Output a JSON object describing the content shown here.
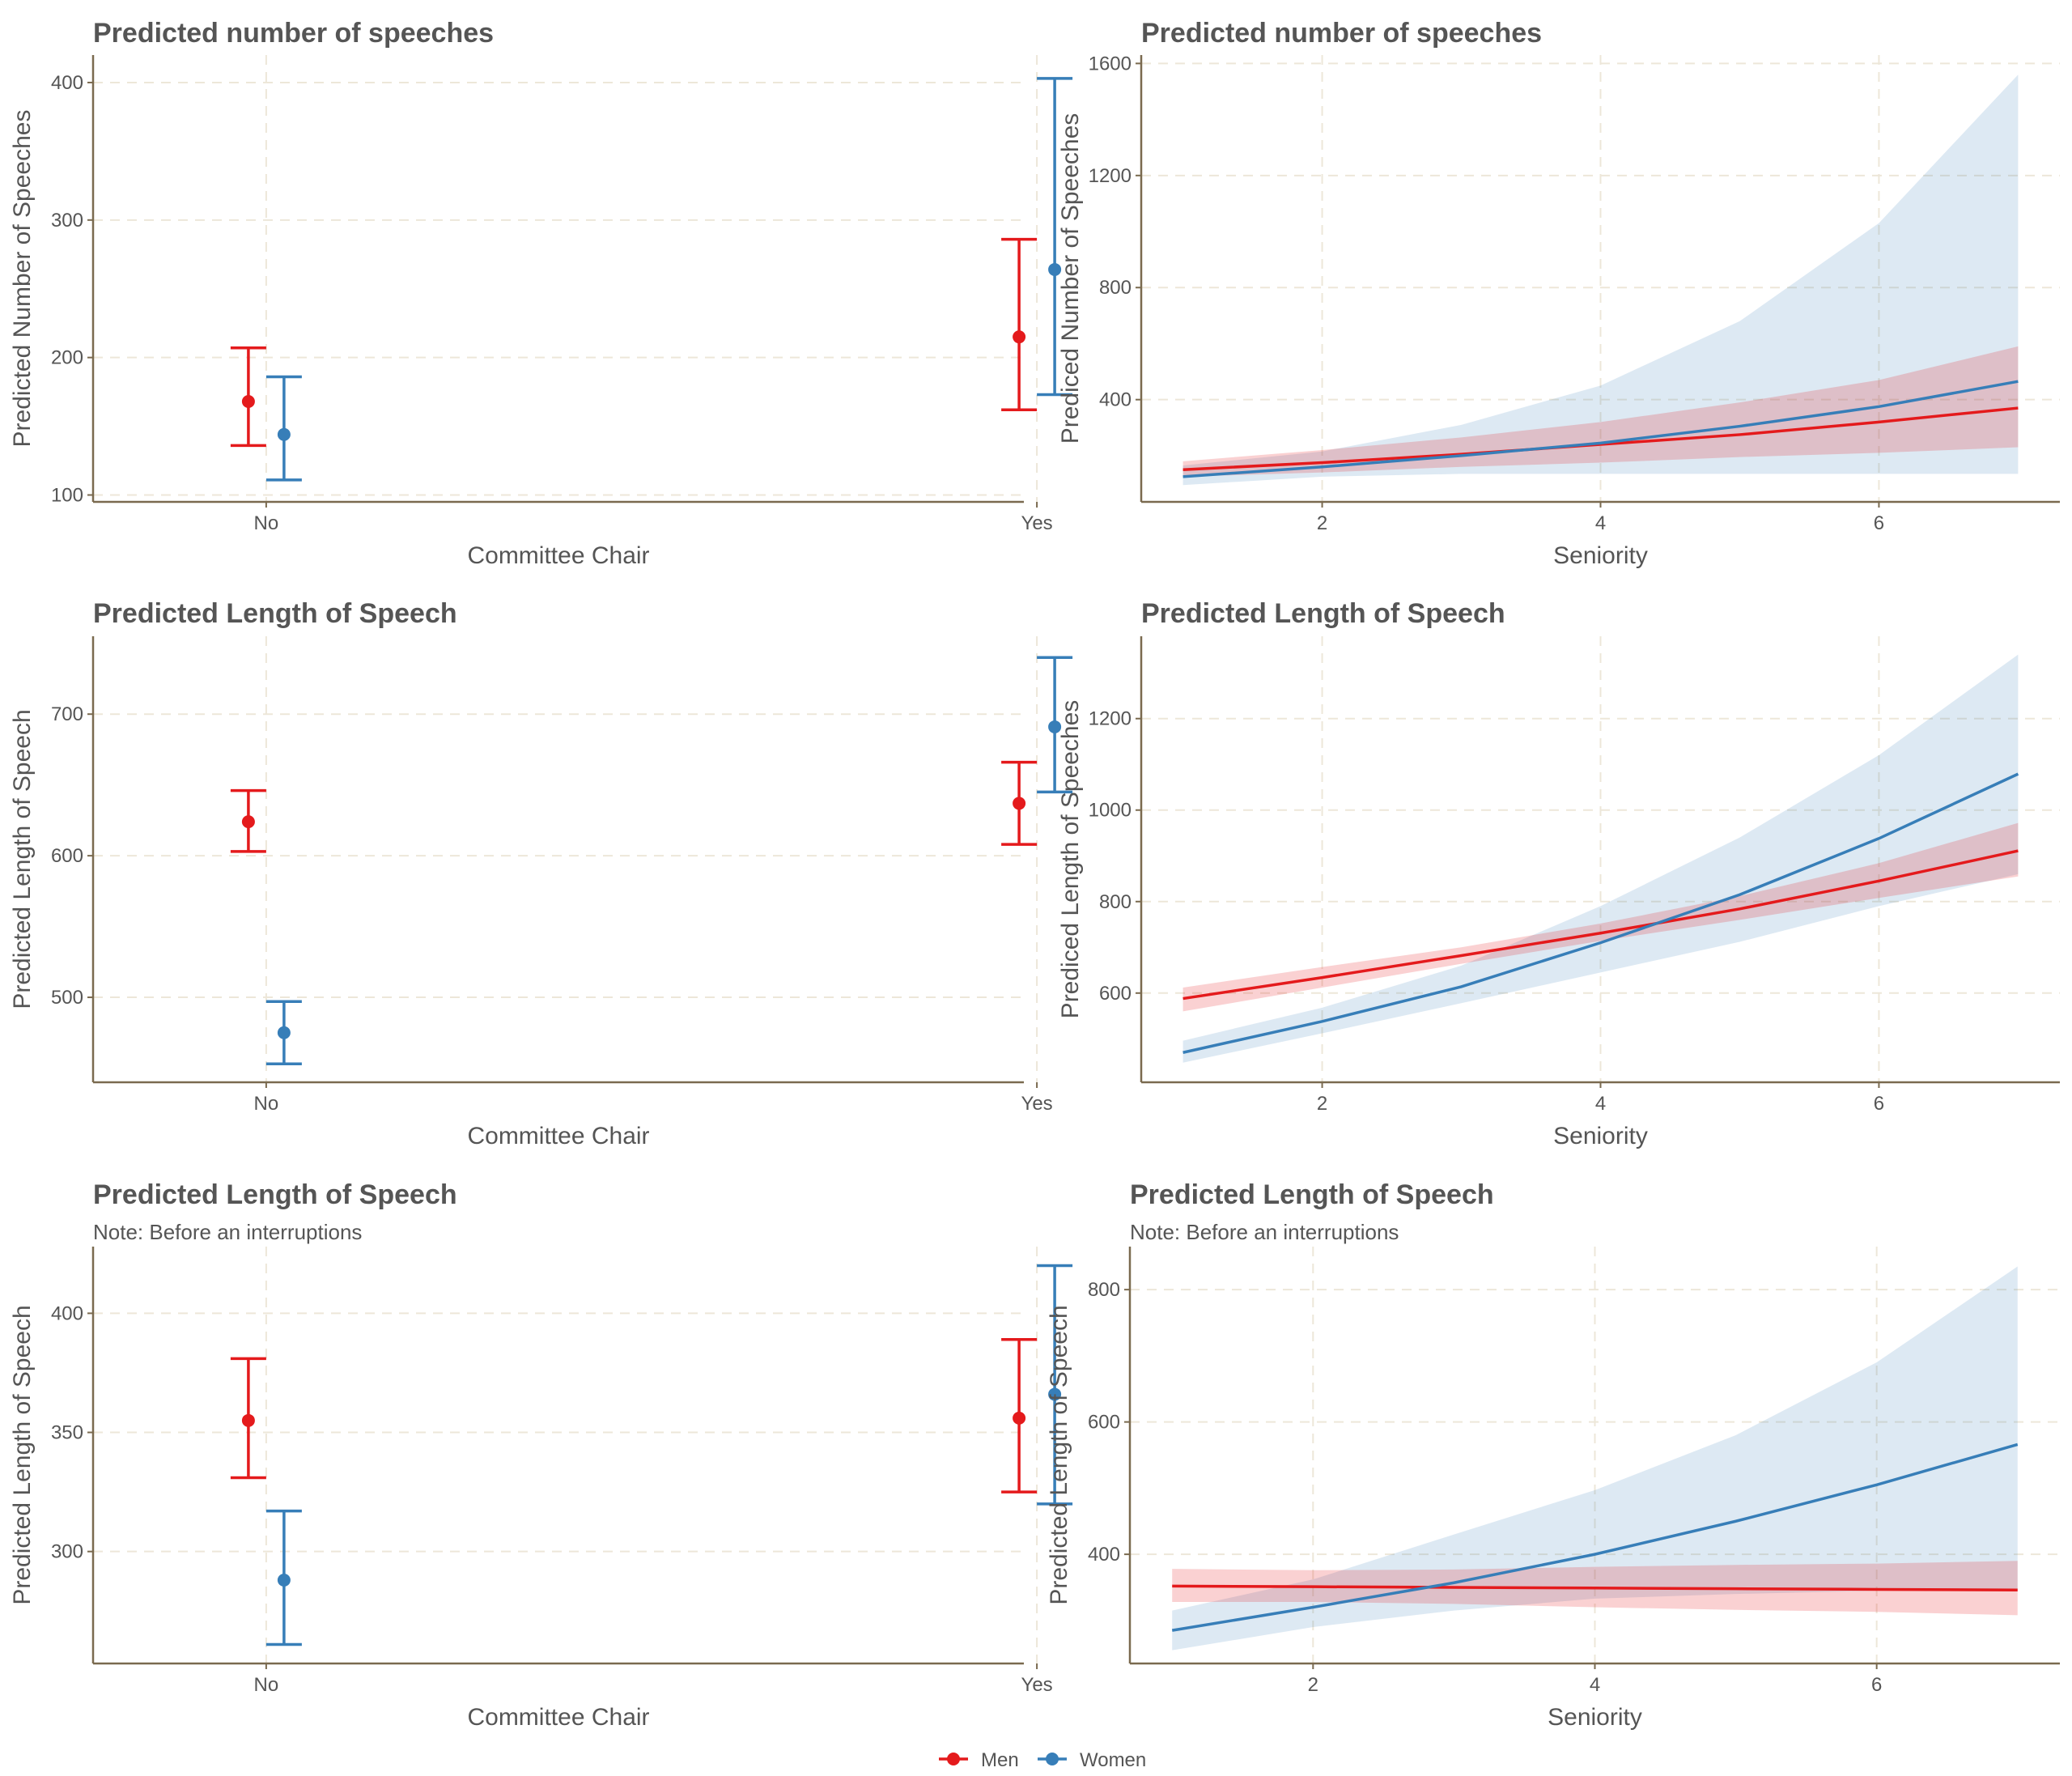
{
  "colors": {
    "men": "#E41A1C",
    "women": "#377EB8",
    "grid": "#EDE7D9",
    "axis": "#7A6A4F",
    "text": "#555555"
  },
  "legend": {
    "items": [
      {
        "label": "Men",
        "color": "#E41A1C"
      },
      {
        "label": "Women",
        "color": "#377EB8"
      }
    ]
  },
  "chart_data": [
    {
      "type": "errorbar",
      "title": "Predicted number of speeches",
      "subtitle": "",
      "xlabel": "Committee Chair",
      "ylabel": "Predicted Number of Speeches",
      "categories": [
        "No",
        "Yes"
      ],
      "ylim": [
        95,
        420
      ],
      "yticks": [
        100,
        200,
        300,
        400
      ],
      "series": [
        {
          "name": "Men",
          "color": "#E41A1C",
          "estimates": [
            168,
            215
          ],
          "lower": [
            136,
            162
          ],
          "upper": [
            207,
            286
          ]
        },
        {
          "name": "Women",
          "color": "#377EB8",
          "estimates": [
            144,
            264
          ],
          "lower": [
            111,
            173
          ],
          "upper": [
            186,
            403
          ]
        }
      ]
    },
    {
      "type": "line",
      "title": "Predicted number of speeches",
      "subtitle": "",
      "xlabel": "Seniority",
      "ylabel": "Prediced Number of Speeches",
      "xlim": [
        0.7,
        7.3
      ],
      "xticks": [
        2,
        4,
        6
      ],
      "ylim": [
        35,
        1630
      ],
      "yticks": [
        400,
        800,
        1200,
        1600
      ],
      "x": [
        1,
        2,
        3,
        4,
        5,
        6,
        7
      ],
      "series": [
        {
          "name": "Men",
          "color": "#E41A1C",
          "values": [
            150,
            175,
            205,
            240,
            275,
            320,
            370
          ],
          "lower": [
            125,
            140,
            160,
            175,
            195,
            210,
            230
          ],
          "upper": [
            180,
            220,
            265,
            320,
            390,
            470,
            590
          ]
        },
        {
          "name": "Women",
          "color": "#377EB8",
          "values": [
            125,
            160,
            200,
            245,
            305,
            375,
            465
          ],
          "lower": [
            95,
            125,
            135,
            135,
            135,
            135,
            135
          ],
          "upper": [
            165,
            215,
            310,
            450,
            680,
            1030,
            1560
          ]
        }
      ]
    },
    {
      "type": "errorbar",
      "title": "Predicted Length of Speech",
      "subtitle": "",
      "xlabel": "Committee Chair",
      "ylabel": "Predicted Length of Speech",
      "categories": [
        "No",
        "Yes"
      ],
      "ylim": [
        440,
        755
      ],
      "yticks": [
        500,
        600,
        700
      ],
      "series": [
        {
          "name": "Men",
          "color": "#E41A1C",
          "estimates": [
            624,
            637
          ],
          "lower": [
            603,
            608
          ],
          "upper": [
            646,
            666
          ]
        },
        {
          "name": "Women",
          "color": "#377EB8",
          "estimates": [
            475,
            691
          ],
          "lower": [
            453,
            645
          ],
          "upper": [
            497,
            740
          ]
        }
      ]
    },
    {
      "type": "line",
      "title": "Predicted Length of Speech",
      "subtitle": "",
      "xlabel": "Seniority",
      "ylabel": "Prediced Length of Speeches",
      "xlim": [
        0.7,
        7.3
      ],
      "xticks": [
        2,
        4,
        6
      ],
      "ylim": [
        405,
        1380
      ],
      "yticks": [
        600,
        800,
        1000,
        1200
      ],
      "x": [
        1,
        2,
        3,
        4,
        5,
        6,
        7
      ],
      "series": [
        {
          "name": "Men",
          "color": "#E41A1C",
          "values": [
            588,
            634,
            682,
            731,
            784,
            845,
            911
          ],
          "lower": [
            560,
            612,
            664,
            714,
            760,
            808,
            855
          ],
          "upper": [
            612,
            657,
            700,
            752,
            812,
            884,
            972
          ]
        },
        {
          "name": "Women",
          "color": "#377EB8",
          "values": [
            470,
            538,
            614,
            710,
            815,
            938,
            1079
          ],
          "lower": [
            448,
            512,
            578,
            645,
            712,
            790,
            860
          ],
          "upper": [
            496,
            568,
            660,
            790,
            940,
            1120,
            1340
          ]
        }
      ]
    },
    {
      "type": "errorbar",
      "title": "Predicted Length of Speech",
      "subtitle": "Note: Before an interruptions",
      "xlabel": "Committee Chair",
      "ylabel": "Predicted Length of Speech",
      "categories": [
        "No",
        "Yes"
      ],
      "ylim": [
        253,
        428
      ],
      "yticks": [
        300,
        350,
        400
      ],
      "series": [
        {
          "name": "Men",
          "color": "#E41A1C",
          "estimates": [
            355,
            356
          ],
          "lower": [
            331,
            325
          ],
          "upper": [
            381,
            389
          ]
        },
        {
          "name": "Women",
          "color": "#377EB8",
          "estimates": [
            288,
            366
          ],
          "lower": [
            261,
            320
          ],
          "upper": [
            317,
            420
          ]
        }
      ]
    },
    {
      "type": "line",
      "title": "Predicted Length of Speech",
      "subtitle": "Note: Before an interruptions",
      "xlabel": "Seniority",
      "ylabel": "Predicted Length of Speech",
      "xlim": [
        0.7,
        7.3
      ],
      "xticks": [
        2,
        4,
        6
      ],
      "ylim": [
        235,
        865
      ],
      "yticks": [
        400,
        600,
        800
      ],
      "x": [
        1,
        2,
        3,
        4,
        5,
        6,
        7
      ],
      "series": [
        {
          "name": "Men",
          "color": "#E41A1C",
          "values": [
            352,
            351,
            350,
            349,
            348,
            347,
            346
          ],
          "lower": [
            328,
            328,
            325,
            320,
            316,
            313,
            308
          ],
          "upper": [
            378,
            376,
            377,
            381,
            384,
            386,
            390
          ]
        },
        {
          "name": "Women",
          "color": "#377EB8",
          "values": [
            285,
            320,
            357,
            400,
            450,
            505,
            566
          ],
          "lower": [
            255,
            290,
            315,
            333,
            340,
            345,
            345
          ],
          "upper": [
            315,
            362,
            430,
            497,
            580,
            690,
            835
          ]
        }
      ]
    }
  ]
}
